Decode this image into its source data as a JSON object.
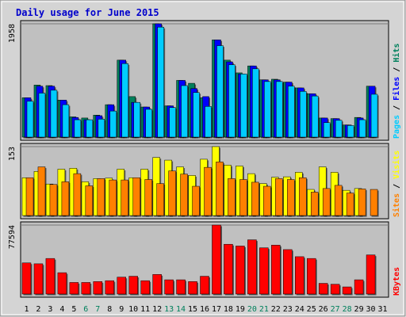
{
  "chart_data": {
    "type": "bar",
    "title": "Daily usage for June 2015",
    "categories": [
      "1",
      "2",
      "3",
      "4",
      "5",
      "6",
      "7",
      "8",
      "9",
      "10",
      "11",
      "12",
      "13",
      "14",
      "15",
      "16",
      "17",
      "18",
      "19",
      "20",
      "21",
      "22",
      "23",
      "24",
      "25",
      "26",
      "27",
      "28",
      "29",
      "30",
      "31"
    ],
    "weekend_days": [
      "6",
      "7",
      "13",
      "14",
      "20",
      "21",
      "27",
      "28"
    ],
    "colors": {
      "title": "#0000cc",
      "hits": "#00805c",
      "files": "#0000ff",
      "pages": "#00ccff",
      "visits": "#ffff00",
      "sites": "#ff8000",
      "kbytes": "#ff0000",
      "weekend_label": "#00805c",
      "panel": "#c0c0c0",
      "frame": "#d0d0d0"
    },
    "panels": [
      {
        "id": "hits-files-pages",
        "max_label": "1958",
        "ylim": [
          0,
          1958
        ],
        "legend": [
          {
            "text": "Pages",
            "color": "#00ccff"
          },
          {
            "text": "Files",
            "color": "#0000ff"
          },
          {
            "text": "Hits",
            "color": "#00805c"
          }
        ],
        "series": [
          {
            "name": "Hits",
            "color": "#00805c",
            "values": [
              680,
              900,
              890,
              640,
              350,
              330,
              380,
              560,
              1330,
              700,
              520,
              1958,
              540,
              980,
              930,
              680,
              1680,
              1330,
              1110,
              1230,
              990,
              1000,
              950,
              850,
              750,
              330,
              320,
              210,
              340,
              880,
              null
            ]
          },
          {
            "name": "Files",
            "color": "#0000ff",
            "values": [
              680,
              880,
              880,
              640,
              340,
              300,
              370,
              560,
              1330,
              600,
              520,
              1958,
              540,
              980,
              840,
              700,
              1680,
              1300,
              1090,
              1230,
              990,
              990,
              950,
              850,
              750,
              330,
              320,
              210,
              330,
              880,
              null
            ]
          },
          {
            "name": "Pages",
            "color": "#00ccff",
            "values": [
              620,
              760,
              810,
              560,
              300,
              300,
              310,
              450,
              1270,
              600,
              480,
              1900,
              510,
              890,
              770,
              530,
              1580,
              1250,
              1090,
              1180,
              960,
              960,
              880,
              790,
              710,
              250,
              290,
              200,
              300,
              740,
              null
            ]
          }
        ]
      },
      {
        "id": "visits-sites",
        "max_label": "153",
        "ylim": [
          0,
          153
        ],
        "legend": [
          {
            "text": "Sites",
            "color": "#ff8000"
          },
          {
            "text": "Visits",
            "color": "#ffff00"
          }
        ],
        "series": [
          {
            "name": "Visits",
            "color": "#ffff00",
            "values": [
              84,
              98,
              70,
              103,
              105,
              75,
              82,
              83,
              103,
              84,
              103,
              129,
              123,
              108,
              89,
              125,
              153,
              112,
              110,
              93,
              71,
              85,
              86,
              96,
              58,
              108,
              96,
              56,
              60,
              null,
              null
            ]
          },
          {
            "name": "Sites",
            "color": "#ff8000",
            "values": [
              84,
              108,
              69,
              75,
              93,
              66,
              82,
              79,
              79,
              84,
              80,
              71,
              99,
              92,
              65,
              107,
              119,
              82,
              80,
              74,
              65,
              82,
              80,
              84,
              52,
              60,
              67,
              50,
              59,
              58,
              null
            ]
          }
        ]
      },
      {
        "id": "kbytes",
        "max_label": "77594",
        "ylim": [
          0,
          77594
        ],
        "legend": [
          {
            "text": "KBytes",
            "color": "#ff0000"
          }
        ],
        "series": [
          {
            "name": "KBytes",
            "color": "#ff0000",
            "values": [
              35000,
              34000,
              40000,
              24000,
              13000,
              13000,
              14000,
              15000,
              19000,
              20000,
              15000,
              22000,
              16000,
              16000,
              14000,
              20000,
              77594,
              56000,
              54000,
              61000,
              52000,
              55000,
              50000,
              42000,
              40000,
              12000,
              11000,
              8000,
              16000,
              44000,
              null
            ]
          }
        ]
      }
    ],
    "grid": true
  }
}
